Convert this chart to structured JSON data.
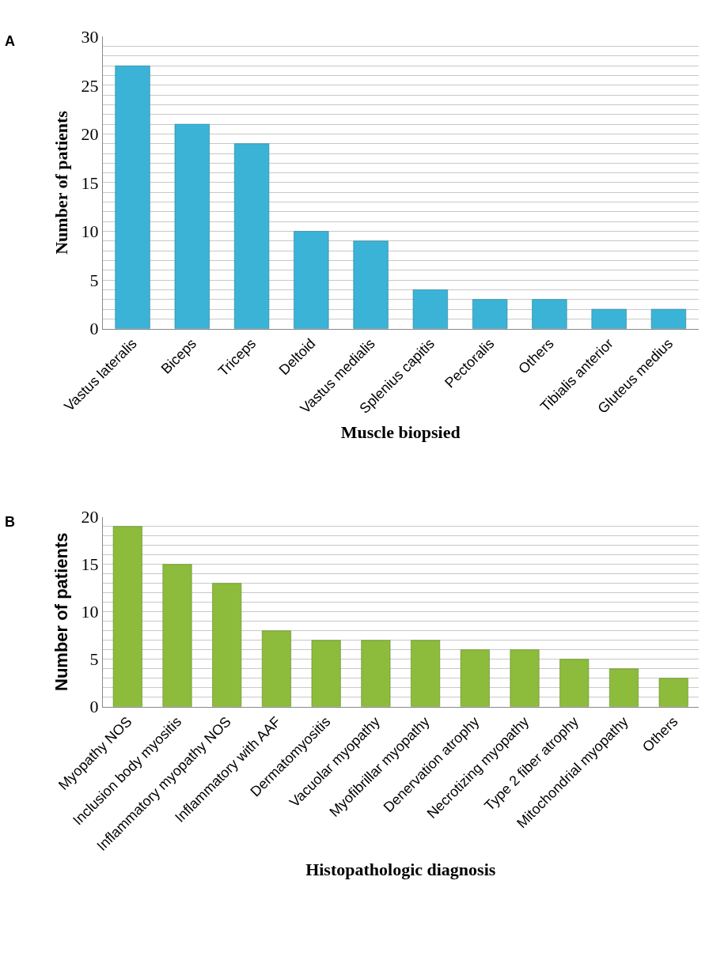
{
  "chart_data": [
    {
      "type": "bar",
      "annotations": [
        "A"
      ],
      "xlabel": "Muscle biopsied",
      "ylabel": "Number of patients",
      "categories": [
        "Vastus lateralis",
        "Biceps",
        "Triceps",
        "Deltoid",
        "Vastus medialis",
        "Splenius capitis",
        "Pectoralis",
        "Others",
        "Tibialis anterior",
        "Gluteus medius"
      ],
      "values": [
        27,
        21,
        19,
        10,
        9,
        4,
        3,
        3,
        2,
        2
      ],
      "color": "#3bb3d6",
      "ylim": [
        0,
        30
      ],
      "yticks": [
        0,
        {
          "value": 1,
          "label": null
        },
        {
          "value": 2,
          "label": null
        },
        {
          "value": 3,
          "label": null
        },
        {
          "value": 4,
          "label": null
        },
        5,
        {
          "value": 6,
          "label": null
        },
        {
          "value": 7,
          "label": null
        },
        {
          "value": 8,
          "label": null
        },
        {
          "value": 9,
          "label": null
        },
        10,
        {
          "value": 11,
          "label": null
        },
        {
          "value": 12,
          "label": null
        },
        {
          "value": 13,
          "label": null
        },
        {
          "value": 14,
          "label": null
        },
        15,
        {
          "value": 16,
          "label": null
        },
        {
          "value": 17,
          "label": null
        },
        {
          "value": 18,
          "label": null
        },
        {
          "value": 19,
          "label": null
        },
        20,
        {
          "value": 21,
          "label": null
        },
        {
          "value": 22,
          "label": null
        },
        {
          "value": 23,
          "label": null
        },
        {
          "value": 24,
          "label": null
        },
        25,
        {
          "value": 26,
          "label": null
        },
        {
          "value": 27,
          "label": null
        },
        {
          "value": 28,
          "label": null
        },
        {
          "value": 29,
          "label": null
        },
        30
      ],
      "grid": "y"
    },
    {
      "type": "bar",
      "annotations": [
        "B"
      ],
      "xlabel": "Histopathologic diagnosis",
      "ylabel": "Number of patients",
      "categories": [
        "Myopathy NOS",
        "Inclusion body myositis",
        "Inflammatory myopathy NOS",
        "Inflammatory with AAF",
        "Dermatomyositis",
        "Vacuolar myopathy",
        "Myofibrillar myopathy",
        "Denervation atrophy",
        "Necrotizing myopathy",
        "Type 2 fiber atrophy",
        "Mitochondrial myopathy",
        "Others"
      ],
      "values": [
        19,
        15,
        13,
        8,
        7,
        7,
        7,
        6,
        6,
        5,
        4,
        3
      ],
      "color": "#8dbb3c",
      "ylim": [
        0,
        20
      ],
      "yticks": [
        0,
        {
          "value": 1,
          "label": null
        },
        {
          "value": 2,
          "label": null
        },
        {
          "value": 3,
          "label": null
        },
        {
          "value": 4,
          "label": null
        },
        5,
        {
          "value": 6,
          "label": null
        },
        {
          "value": 7,
          "label": null
        },
        {
          "value": 8,
          "label": null
        },
        {
          "value": 9,
          "label": null
        },
        10,
        {
          "value": 11,
          "label": null
        },
        {
          "value": 12,
          "label": null
        },
        {
          "value": 13,
          "label": null
        },
        {
          "value": 14,
          "label": null
        },
        15,
        {
          "value": 16,
          "label": null
        },
        {
          "value": 17,
          "label": null
        },
        {
          "value": 18,
          "label": null
        },
        {
          "value": 19,
          "label": null
        },
        20
      ],
      "grid": "y"
    }
  ]
}
